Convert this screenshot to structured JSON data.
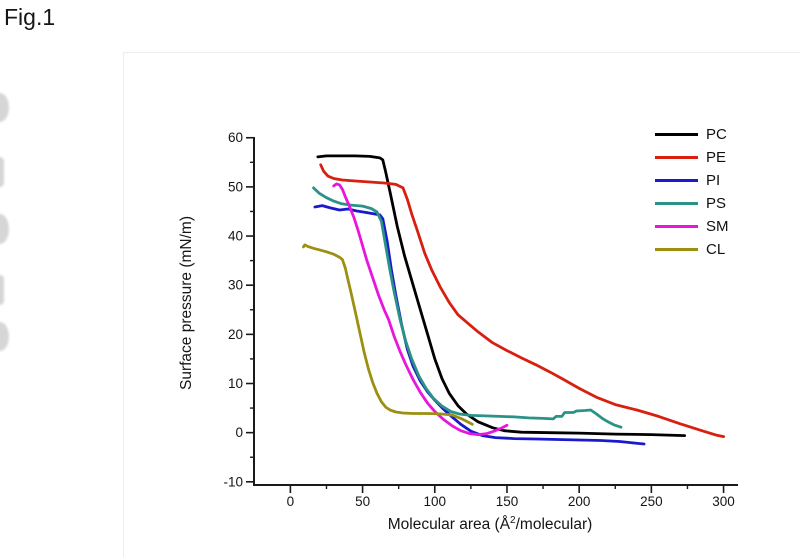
{
  "figure": {
    "label": "Fig.1"
  },
  "chart_data": {
    "type": "line",
    "title": "",
    "xlabel": "Molecular area (Å2/molecular)",
    "xlabel_parts": {
      "pre": "Molecular area (Å",
      "sup": "2",
      "post": "/molecular)"
    },
    "ylabel": "Surface pressure (mN/m)",
    "xlim": [
      -25.2,
      310
    ],
    "ylim": [
      -10.65,
      60.15
    ],
    "x_major_ticks": [
      0,
      50,
      100,
      150,
      200,
      250,
      300
    ],
    "x_minor_ticks": [
      25,
      75,
      125,
      175,
      225,
      275
    ],
    "y_major_ticks": [
      -10,
      0,
      10,
      20,
      30,
      40,
      50,
      60
    ],
    "y_minor_ticks": [
      -5,
      5,
      15,
      25,
      35,
      45,
      55
    ],
    "grid": false,
    "legend_position": "upper right",
    "axis_color": "#1a1a1a",
    "series": [
      {
        "name": "PC",
        "color": "#000000",
        "points": [
          [
            19,
            56.1
          ],
          [
            25,
            56.3
          ],
          [
            35,
            56.3
          ],
          [
            45,
            56.3
          ],
          [
            55,
            56.2
          ],
          [
            62,
            55.9
          ],
          [
            64,
            55.5
          ],
          [
            66,
            53
          ],
          [
            69,
            49
          ],
          [
            74,
            42
          ],
          [
            79,
            36
          ],
          [
            84,
            31
          ],
          [
            89,
            26
          ],
          [
            95,
            20
          ],
          [
            100,
            15
          ],
          [
            105,
            11
          ],
          [
            110,
            8
          ],
          [
            116,
            5.5
          ],
          [
            122,
            3.8
          ],
          [
            130,
            2.2
          ],
          [
            140,
            1
          ],
          [
            148,
            0.4
          ],
          [
            160,
            0.1
          ],
          [
            180,
            0
          ],
          [
            200,
            -0.1
          ],
          [
            225,
            -0.3
          ],
          [
            250,
            -0.4
          ],
          [
            273,
            -0.6
          ]
        ]
      },
      {
        "name": "PE",
        "color": "#d81f10",
        "points": [
          [
            21,
            54.5
          ],
          [
            23,
            53.2
          ],
          [
            26,
            52.2
          ],
          [
            30,
            51.7
          ],
          [
            36,
            51.4
          ],
          [
            45,
            51.2
          ],
          [
            55,
            51
          ],
          [
            65,
            50.8
          ],
          [
            73,
            50.5
          ],
          [
            78,
            49.8
          ],
          [
            81,
            47.5
          ],
          [
            84,
            44.5
          ],
          [
            88,
            41
          ],
          [
            93,
            36.5
          ],
          [
            98,
            33
          ],
          [
            104,
            29.5
          ],
          [
            110,
            26.5
          ],
          [
            116,
            24
          ],
          [
            122,
            22.5
          ],
          [
            130,
            20.5
          ],
          [
            140,
            18.3
          ],
          [
            150,
            16.7
          ],
          [
            160,
            15.2
          ],
          [
            170,
            13.8
          ],
          [
            180,
            12.3
          ],
          [
            190,
            10.7
          ],
          [
            200,
            9
          ],
          [
            212,
            7.2
          ],
          [
            225,
            5.7
          ],
          [
            240,
            4.6
          ],
          [
            255,
            3.3
          ],
          [
            270,
            1.8
          ],
          [
            285,
            0.4
          ],
          [
            295,
            -0.5
          ],
          [
            300,
            -0.8
          ]
        ]
      },
      {
        "name": "PI",
        "color": "#1a1acc",
        "points": [
          [
            17,
            45.9
          ],
          [
            22,
            46.2
          ],
          [
            28,
            45.7
          ],
          [
            34,
            45.3
          ],
          [
            40,
            45.5
          ],
          [
            46,
            45.1
          ],
          [
            52,
            44.8
          ],
          [
            58,
            44.5
          ],
          [
            62,
            44.3
          ],
          [
            64,
            43.5
          ],
          [
            67,
            39
          ],
          [
            70,
            33
          ],
          [
            73,
            28
          ],
          [
            77,
            22
          ],
          [
            81,
            17
          ],
          [
            85,
            13.5
          ],
          [
            90,
            10.5
          ],
          [
            95,
            8.3
          ],
          [
            100,
            6.6
          ],
          [
            106,
            4.8
          ],
          [
            112,
            3.2
          ],
          [
            118,
            1.7
          ],
          [
            125,
            0.3
          ],
          [
            133,
            -0.6
          ],
          [
            142,
            -1
          ],
          [
            155,
            -1.2
          ],
          [
            170,
            -1.3
          ],
          [
            185,
            -1.4
          ],
          [
            200,
            -1.5
          ],
          [
            215,
            -1.6
          ],
          [
            228,
            -1.8
          ],
          [
            238,
            -2.1
          ],
          [
            245,
            -2.3
          ]
        ]
      },
      {
        "name": "PS",
        "color": "#2a9286",
        "points": [
          [
            16,
            49.8
          ],
          [
            20,
            48.7
          ],
          [
            25,
            47.8
          ],
          [
            30,
            47.1
          ],
          [
            35,
            46.6
          ],
          [
            42,
            46.3
          ],
          [
            50,
            46.1
          ],
          [
            56,
            45.6
          ],
          [
            60,
            44.9
          ],
          [
            63,
            43
          ],
          [
            66,
            38
          ],
          [
            69,
            33
          ],
          [
            72,
            28.5
          ],
          [
            76,
            23
          ],
          [
            80,
            18.5
          ],
          [
            84,
            15
          ],
          [
            89,
            11.5
          ],
          [
            94,
            9
          ],
          [
            99,
            7
          ],
          [
            105,
            5.4
          ],
          [
            111,
            4.3
          ],
          [
            117,
            3.8
          ],
          [
            125,
            3.5
          ],
          [
            135,
            3.4
          ],
          [
            145,
            3.3
          ],
          [
            155,
            3.2
          ],
          [
            165,
            3
          ],
          [
            175,
            2.9
          ],
          [
            182,
            2.8
          ],
          [
            184,
            3.3
          ],
          [
            188,
            3.3
          ],
          [
            190,
            4.1
          ],
          [
            196,
            4.1
          ],
          [
            198,
            4.4
          ],
          [
            204,
            4.5
          ],
          [
            208,
            4.6
          ],
          [
            212,
            3.8
          ],
          [
            216,
            2.9
          ],
          [
            220,
            2.2
          ],
          [
            224,
            1.6
          ],
          [
            229,
            1.1
          ]
        ]
      },
      {
        "name": "SM",
        "color": "#e816dc",
        "points": [
          [
            30,
            50.2
          ],
          [
            32,
            50.6
          ],
          [
            34,
            50.4
          ],
          [
            36,
            49.5
          ],
          [
            38,
            48
          ],
          [
            41,
            46
          ],
          [
            44,
            43.8
          ],
          [
            47,
            41
          ],
          [
            50,
            38
          ],
          [
            53,
            35
          ],
          [
            57,
            31.5
          ],
          [
            61,
            28
          ],
          [
            65,
            25
          ],
          [
            68,
            23
          ],
          [
            72,
            19.5
          ],
          [
            76,
            16.5
          ],
          [
            80,
            13.8
          ],
          [
            85,
            10.8
          ],
          [
            90,
            8.2
          ],
          [
            95,
            6
          ],
          [
            100,
            4.3
          ],
          [
            106,
            2.7
          ],
          [
            112,
            1.4
          ],
          [
            118,
            0.4
          ],
          [
            124,
            -0.2
          ],
          [
            130,
            -0.4
          ],
          [
            136,
            -0.2
          ],
          [
            141,
            0.3
          ],
          [
            146,
            0.9
          ],
          [
            150,
            1.5
          ]
        ]
      },
      {
        "name": "CL",
        "color": "#9c9013",
        "points": [
          [
            9,
            37.8
          ],
          [
            10,
            38.2
          ],
          [
            12,
            37.9
          ],
          [
            16,
            37.5
          ],
          [
            20,
            37.2
          ],
          [
            25,
            36.8
          ],
          [
            30,
            36.3
          ],
          [
            34,
            35.7
          ],
          [
            36,
            35.2
          ],
          [
            38,
            33.5
          ],
          [
            40,
            31
          ],
          [
            42,
            28.5
          ],
          [
            45,
            24.5
          ],
          [
            48,
            20.5
          ],
          [
            51,
            16.5
          ],
          [
            54,
            13
          ],
          [
            57,
            10.2
          ],
          [
            60,
            8
          ],
          [
            63,
            6.3
          ],
          [
            66,
            5.2
          ],
          [
            69,
            4.6
          ],
          [
            73,
            4.2
          ],
          [
            78,
            4
          ],
          [
            85,
            3.9
          ],
          [
            95,
            3.9
          ],
          [
            105,
            3.8
          ],
          [
            112,
            3.6
          ],
          [
            118,
            2.9
          ],
          [
            122,
            2.3
          ],
          [
            126,
            1.7
          ]
        ]
      }
    ]
  }
}
